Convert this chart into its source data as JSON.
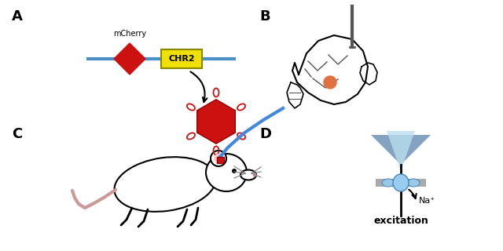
{
  "background_color": "#ffffff",
  "panel_labels": [
    "A",
    "B",
    "C",
    "D"
  ],
  "mcherry_text": "mCherry",
  "chr2_text": "CHR2",
  "excitation_text": "excitation",
  "na_text": "Na⁺",
  "line_color": "#4a90c4",
  "red_color": "#cc1111",
  "yellow_color": "#f0e000",
  "black_color": "#000000",
  "gray_color": "#aaaaaa",
  "blue_color": "#6699cc",
  "light_blue": "#99ccee",
  "orange_color": "#e07040"
}
